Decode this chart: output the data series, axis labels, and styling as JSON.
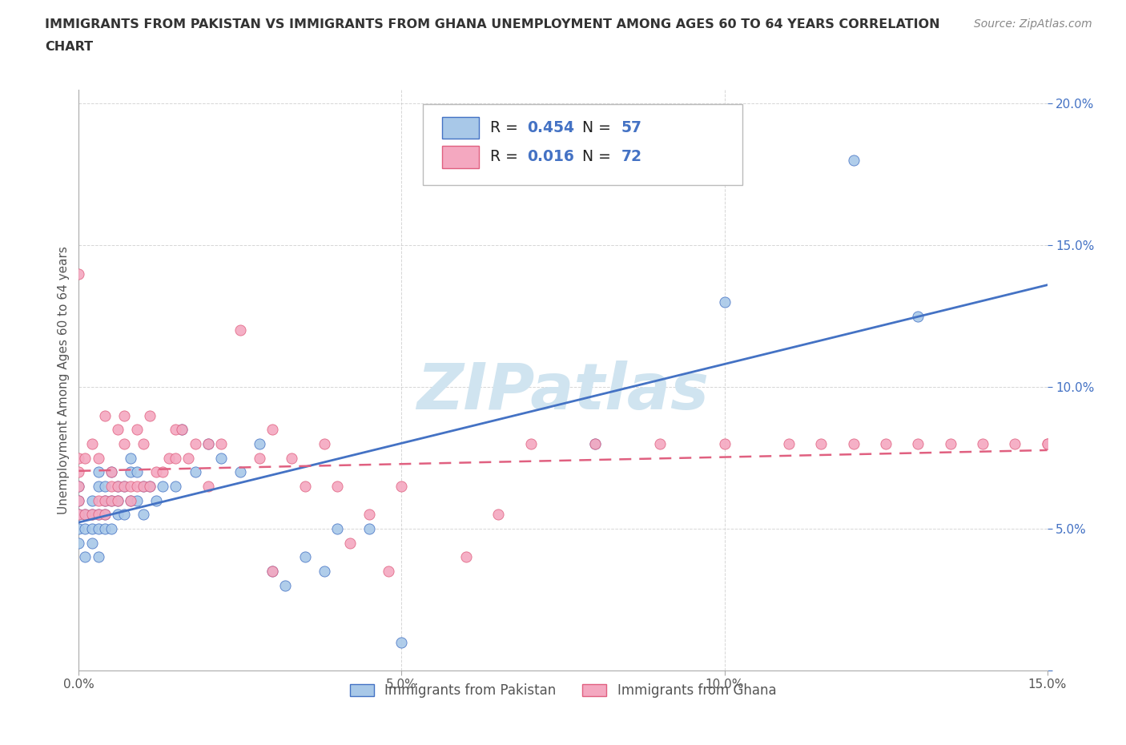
{
  "title_line1": "IMMIGRANTS FROM PAKISTAN VS IMMIGRANTS FROM GHANA UNEMPLOYMENT AMONG AGES 60 TO 64 YEARS CORRELATION",
  "title_line2": "CHART",
  "source": "Source: ZipAtlas.com",
  "ylabel": "Unemployment Among Ages 60 to 64 years",
  "xlim": [
    0.0,
    0.15
  ],
  "ylim": [
    0.0,
    0.205
  ],
  "xticks": [
    0.0,
    0.05,
    0.1,
    0.15
  ],
  "xticklabels": [
    "0.0%",
    "5.0%",
    "10.0%",
    "15.0%"
  ],
  "yticks": [
    0.0,
    0.05,
    0.1,
    0.15,
    0.2
  ],
  "yticklabels": [
    "",
    "5.0%",
    "10.0%",
    "15.0%",
    "20.0%"
  ],
  "pakistan_color": "#a8c8e8",
  "ghana_color": "#f4a8c0",
  "pakistan_line_color": "#4472c4",
  "ghana_line_color": "#e06080",
  "pakistan_R": 0.454,
  "pakistan_N": 57,
  "ghana_R": 0.016,
  "ghana_N": 72,
  "watermark": "ZIPatlas",
  "watermark_color": "#d0e4f0",
  "background_color": "#ffffff",
  "pakistan_x": [
    0.0,
    0.0,
    0.0,
    0.0,
    0.0,
    0.001,
    0.001,
    0.001,
    0.002,
    0.002,
    0.002,
    0.002,
    0.003,
    0.003,
    0.003,
    0.003,
    0.003,
    0.004,
    0.004,
    0.004,
    0.004,
    0.005,
    0.005,
    0.005,
    0.006,
    0.006,
    0.006,
    0.007,
    0.007,
    0.008,
    0.008,
    0.008,
    0.009,
    0.009,
    0.01,
    0.01,
    0.011,
    0.012,
    0.013,
    0.015,
    0.016,
    0.018,
    0.02,
    0.022,
    0.025,
    0.028,
    0.03,
    0.032,
    0.035,
    0.038,
    0.04,
    0.045,
    0.05,
    0.08,
    0.1,
    0.12,
    0.13
  ],
  "pakistan_y": [
    0.045,
    0.05,
    0.055,
    0.06,
    0.065,
    0.04,
    0.05,
    0.055,
    0.045,
    0.05,
    0.055,
    0.06,
    0.04,
    0.05,
    0.055,
    0.065,
    0.07,
    0.05,
    0.055,
    0.06,
    0.065,
    0.05,
    0.06,
    0.07,
    0.055,
    0.06,
    0.065,
    0.055,
    0.065,
    0.06,
    0.07,
    0.075,
    0.06,
    0.07,
    0.055,
    0.065,
    0.065,
    0.06,
    0.065,
    0.065,
    0.085,
    0.07,
    0.08,
    0.075,
    0.07,
    0.08,
    0.035,
    0.03,
    0.04,
    0.035,
    0.05,
    0.05,
    0.01,
    0.08,
    0.13,
    0.18,
    0.125
  ],
  "ghana_x": [
    0.0,
    0.0,
    0.0,
    0.0,
    0.0,
    0.0,
    0.001,
    0.001,
    0.002,
    0.002,
    0.003,
    0.003,
    0.003,
    0.004,
    0.004,
    0.004,
    0.005,
    0.005,
    0.005,
    0.006,
    0.006,
    0.006,
    0.007,
    0.007,
    0.007,
    0.008,
    0.008,
    0.009,
    0.009,
    0.01,
    0.01,
    0.011,
    0.011,
    0.012,
    0.013,
    0.014,
    0.015,
    0.015,
    0.016,
    0.017,
    0.018,
    0.02,
    0.02,
    0.022,
    0.025,
    0.028,
    0.03,
    0.03,
    0.033,
    0.035,
    0.038,
    0.04,
    0.042,
    0.045,
    0.048,
    0.05,
    0.06,
    0.065,
    0.07,
    0.08,
    0.09,
    0.1,
    0.11,
    0.115,
    0.12,
    0.125,
    0.13,
    0.135,
    0.14,
    0.145,
    0.15,
    0.15
  ],
  "ghana_y": [
    0.055,
    0.06,
    0.065,
    0.07,
    0.075,
    0.14,
    0.055,
    0.075,
    0.055,
    0.08,
    0.055,
    0.06,
    0.075,
    0.055,
    0.06,
    0.09,
    0.06,
    0.065,
    0.07,
    0.06,
    0.065,
    0.085,
    0.065,
    0.08,
    0.09,
    0.06,
    0.065,
    0.065,
    0.085,
    0.065,
    0.08,
    0.065,
    0.09,
    0.07,
    0.07,
    0.075,
    0.075,
    0.085,
    0.085,
    0.075,
    0.08,
    0.065,
    0.08,
    0.08,
    0.12,
    0.075,
    0.035,
    0.085,
    0.075,
    0.065,
    0.08,
    0.065,
    0.045,
    0.055,
    0.035,
    0.065,
    0.04,
    0.055,
    0.08,
    0.08,
    0.08,
    0.08,
    0.08,
    0.08,
    0.08,
    0.08,
    0.08,
    0.08,
    0.08,
    0.08,
    0.08,
    0.08
  ]
}
